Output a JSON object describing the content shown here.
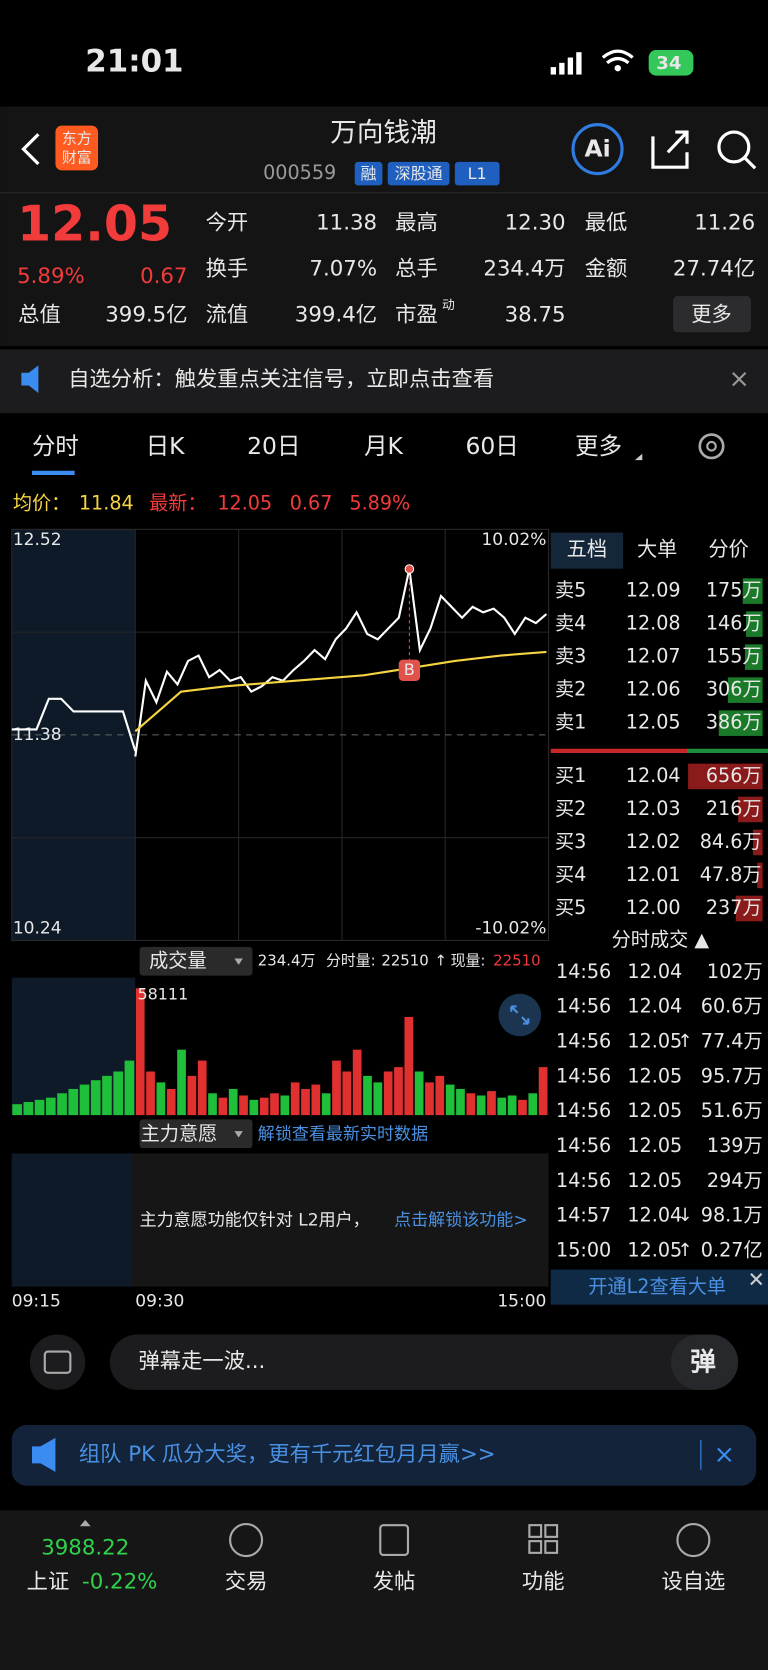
{
  "status": {
    "time": "21:01",
    "battery": "34"
  },
  "header": {
    "logo": [
      "东方",
      "财富"
    ],
    "title": "万向钱潮",
    "code": "000559",
    "tags": [
      "融",
      "深股通",
      "L1"
    ],
    "ai": "Ai"
  },
  "quote": {
    "price": "12.05",
    "change_pct": "5.89%",
    "change": "0.67",
    "more": "更多",
    "fields": [
      {
        "label": "今开",
        "value": "11.38",
        "color": "#e8e8e8"
      },
      {
        "label": "最高",
        "value": "12.30",
        "color": "#f23b3b"
      },
      {
        "label": "最低",
        "value": "11.26",
        "color": "#2fd34a"
      },
      {
        "label": "换手",
        "value": "7.07%",
        "color": "#e8e8e8"
      },
      {
        "label": "总手",
        "value": "234.4万",
        "color": "#e8e8e8"
      },
      {
        "label": "金额",
        "value": "27.74亿",
        "color": "#e8e8e8"
      },
      {
        "label": "总值",
        "value": "399.5亿",
        "color": "#e8e8e8"
      },
      {
        "label": "流值",
        "value": "399.4亿",
        "color": "#e8e8e8"
      },
      {
        "label": "市盈",
        "sup": "动",
        "value": "38.75",
        "color": "#e8e8e8"
      }
    ]
  },
  "notice": "自选分析：触发重点关注信号，立即点击查看",
  "tabs": [
    "分时",
    "日K",
    "20日",
    "月K",
    "60日",
    "更多"
  ],
  "summary": {
    "avg_label": "均价：",
    "avg": "11.84",
    "latest_label": "最新：",
    "latest": "12.05",
    "change": "0.67",
    "pct": "5.89%"
  },
  "chart_data": {
    "type": "line",
    "ylim": [
      10.24,
      12.52
    ],
    "yticks": [
      12.52,
      11.38,
      10.24
    ],
    "y2lim": [
      -10.02,
      10.02
    ],
    "y2ticks": [
      {
        "value": 10.02,
        "label": "10.02%"
      },
      {
        "value": -10.02,
        "label": "-10.02%"
      }
    ],
    "xticks": [
      "09:15",
      "09:30",
      "15:00"
    ],
    "pre_auction": [
      11.41,
      11.41,
      11.41,
      11.58,
      11.58,
      11.51,
      11.51,
      11.51,
      11.51,
      11.51,
      11.29
    ],
    "series": [
      {
        "color": "#ffffff",
        "values": [
          11.26,
          11.68,
          11.56,
          11.73,
          11.66,
          11.79,
          11.82,
          11.7,
          11.74,
          11.68,
          11.7,
          11.62,
          11.65,
          11.7,
          11.68,
          11.74,
          11.79,
          11.85,
          11.8,
          11.91,
          11.97,
          12.06,
          11.94,
          11.91,
          11.97,
          12.03,
          12.3,
          11.85,
          11.97,
          12.15,
          12.09,
          12.03,
          12.09,
          12.06,
          12.08,
          12.03,
          11.94,
          12.03,
          12.0,
          12.05
        ]
      },
      {
        "color": "#f5d442",
        "values": [
          11.4,
          11.62,
          11.65,
          11.67,
          11.69,
          11.71,
          11.75,
          11.79,
          11.82,
          11.84
        ]
      }
    ],
    "marker": "B"
  },
  "volume": {
    "label": "成交量",
    "total": "234.4万",
    "period_label": "分时量:",
    "period": "22510",
    "arrow": "↑",
    "now_label": "现量:",
    "now": "22510",
    "ylim": [
      0,
      58111
    ],
    "yticks": [
      58111
    ],
    "pre_values": [
      5000,
      6000,
      7000,
      8000,
      10000,
      12000,
      14000,
      16000,
      18000,
      20000,
      25000
    ],
    "values": [
      58111,
      20000,
      15000,
      12000,
      30000,
      18000,
      25000,
      10000,
      8000,
      12000,
      9000,
      7000,
      8000,
      10000,
      9000,
      15000,
      12000,
      14000,
      10000,
      25000,
      20000,
      30000,
      18000,
      15000,
      20000,
      22000,
      45000,
      20000,
      15000,
      18000,
      14000,
      12000,
      10000,
      9000,
      11000,
      8000,
      9000,
      7000,
      10000,
      22000
    ]
  },
  "main_force": {
    "label": "主力意愿",
    "unlock": "解锁查看最新实时数据",
    "note": "主力意愿功能仅针对 L2用户，",
    "link": "点击解锁该功能>"
  },
  "orderbook": {
    "tabs": [
      "五档",
      "大单",
      "分价"
    ],
    "sell": {
      "labels": [
        "卖5",
        "卖4",
        "卖3",
        "卖2",
        "卖1"
      ],
      "prices": [
        "12.09",
        "12.08",
        "12.07",
        "12.06",
        "12.05"
      ],
      "volumes": [
        175,
        146,
        155,
        306,
        386
      ],
      "volume_labels": [
        "175万",
        "146万",
        "155万",
        "306万",
        "386万"
      ]
    },
    "buy": {
      "labels": [
        "买1",
        "买2",
        "买3",
        "买4",
        "买5"
      ],
      "prices": [
        "12.04",
        "12.03",
        "12.02",
        "12.01",
        "12.00"
      ],
      "volumes": [
        656,
        216,
        84.6,
        47.8,
        237
      ],
      "volume_labels": [
        "656万",
        "216万",
        "84.6万",
        "47.8万",
        "237万"
      ]
    }
  },
  "trades": {
    "title": "分时成交 ▲",
    "rows": [
      {
        "time": "14:56",
        "price": "12.04",
        "vol": "102万",
        "vol_color": "#2fd34a"
      },
      {
        "time": "14:56",
        "price": "12.04",
        "vol": "60.6万",
        "vol_color": "#2fd34a"
      },
      {
        "time": "14:56",
        "price": "12.05",
        "arrow": "↑",
        "arrow_color": "#f23b3b",
        "vol": "77.4万",
        "vol_color": "#f23b3b"
      },
      {
        "time": "14:56",
        "price": "12.05",
        "vol": "95.7万",
        "vol_color": "#f23b3b"
      },
      {
        "time": "14:56",
        "price": "12.05",
        "vol": "51.6万",
        "vol_color": "#f23b3b"
      },
      {
        "time": "14:56",
        "price": "12.05",
        "vol": "139万",
        "vol_color": "#f23b3b"
      },
      {
        "time": "14:56",
        "price": "12.05",
        "vol": "294万",
        "vol_color": "#f23b3b"
      },
      {
        "time": "14:57",
        "price": "12.04",
        "arrow": "↓",
        "arrow_color": "#2fd34a",
        "vol": "98.1万",
        "vol_color": "#2fd34a"
      },
      {
        "time": "15:00",
        "price": "12.05",
        "arrow": "↑",
        "arrow_color": "#f23b3b",
        "vol": "0.27亿",
        "vol_color": "#f23b3b"
      }
    ],
    "l2": "开通L2查看大单"
  },
  "comment": {
    "placeholder": "弹幕走一波...",
    "send": "弹"
  },
  "banner": "组队 PK 瓜分大奖，更有千元红包月月赢>>",
  "nav": {
    "index_value": "3988.22",
    "index_name": "上证",
    "index_change": "-0.22%",
    "items": [
      "交易",
      "发帖",
      "功能",
      "设自选"
    ]
  }
}
